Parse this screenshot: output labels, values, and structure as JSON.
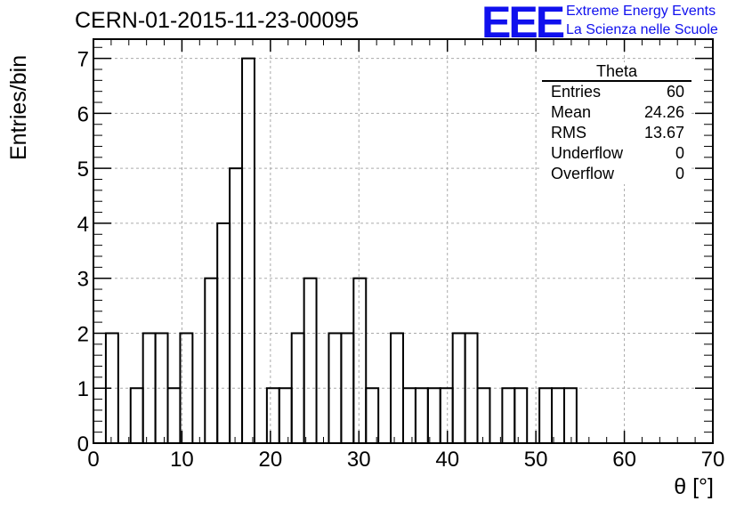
{
  "header": {
    "run_title": "CERN-01-2015-11-23-00095",
    "logo_text": "EEE",
    "logo_line1": "Extreme Energy Events",
    "logo_line2": "La Scienza nelle Scuole"
  },
  "stats": {
    "title": "Theta",
    "rows": [
      {
        "label": "Entries",
        "value": "60"
      },
      {
        "label": "Mean",
        "value": "24.26"
      },
      {
        "label": "RMS",
        "value": "13.67"
      },
      {
        "label": "Underflow",
        "value": "0"
      },
      {
        "label": "Overflow",
        "value": "0"
      }
    ]
  },
  "chart_data": {
    "type": "bar",
    "histogram": true,
    "title": "CERN-01-2015-11-23-00095",
    "xlabel": "θ [°]",
    "ylabel": "Entries/bin",
    "xlim": [
      0,
      70
    ],
    "ylim": [
      0,
      7.35
    ],
    "grid": true,
    "x_ticks": [
      0,
      10,
      20,
      30,
      40,
      50,
      60,
      70
    ],
    "y_ticks": [
      0,
      1,
      2,
      3,
      4,
      5,
      6,
      7
    ],
    "bin_edges": [
      0,
      1.4,
      2.8,
      4.2,
      5.6,
      7.0,
      8.4,
      9.8,
      11.2,
      12.6,
      14.0,
      15.4,
      16.8,
      18.2,
      19.6,
      21.0,
      22.4,
      23.8,
      25.2,
      26.6,
      28.0,
      29.4,
      30.8,
      32.2,
      33.6,
      35.0,
      36.4,
      37.8,
      39.2,
      40.6,
      42.0,
      43.4,
      44.8,
      46.2,
      47.6,
      49.0,
      50.4,
      51.8,
      53.2,
      54.6,
      56.0,
      57.4,
      58.8,
      60.2,
      61.6,
      63.0,
      64.4,
      65.8,
      67.2,
      68.6,
      70.0
    ],
    "values": [
      0,
      2,
      0,
      1,
      2,
      2,
      1,
      2,
      0,
      3,
      4,
      5,
      7,
      0,
      1,
      1,
      2,
      3,
      0,
      2,
      2,
      3,
      1,
      0,
      2,
      1,
      1,
      1,
      1,
      2,
      2,
      1,
      0,
      1,
      1,
      0,
      1,
      1,
      1,
      0,
      0,
      0,
      0,
      0,
      0,
      0,
      0,
      0,
      0,
      0
    ],
    "stats": {
      "name": "Theta",
      "entries": 60,
      "mean": 24.26,
      "rms": 13.67,
      "underflow": 0,
      "overflow": 0
    }
  }
}
